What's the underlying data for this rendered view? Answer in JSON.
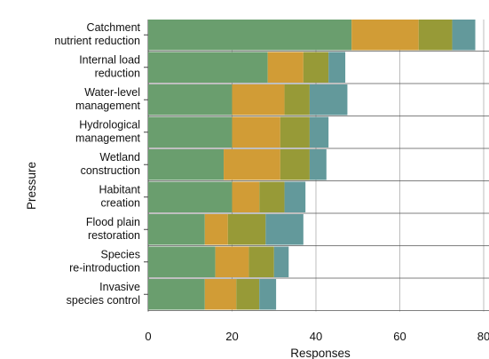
{
  "chart_data": {
    "type": "bar",
    "orientation": "horizontal",
    "stacked": true,
    "xlabel": "Responses",
    "ylabel": "Pressure",
    "xlim": [
      0,
      80
    ],
    "xticks": [
      0,
      20,
      40,
      60,
      80
    ],
    "grid": "vertical",
    "legend": "none",
    "categories": [
      [
        "Catchment",
        "nutrient reduction"
      ],
      [
        "Internal load",
        "reduction"
      ],
      [
        "Water-level",
        "management"
      ],
      [
        "Hydrological",
        "management"
      ],
      [
        "Wetland",
        "construction"
      ],
      [
        "Habitant",
        "creation"
      ],
      [
        "Flood plain",
        "restoration"
      ],
      [
        "Species",
        "re-introduction"
      ],
      [
        "Invasive",
        "species control"
      ]
    ],
    "series": [
      {
        "color": "#6a9e6e",
        "values": [
          48.5,
          28.5,
          20,
          20,
          18,
          20,
          13.5,
          16,
          13.5
        ]
      },
      {
        "color": "#d19c36",
        "values": [
          16,
          8.5,
          12.5,
          11.5,
          13.5,
          6.5,
          5.5,
          8,
          7.5
        ]
      },
      {
        "color": "#979a37",
        "values": [
          8,
          6,
          6,
          7,
          7,
          6,
          9,
          6,
          5.5
        ]
      },
      {
        "color": "#63999b",
        "values": [
          5.5,
          4,
          9,
          4.5,
          4,
          5,
          9,
          3.5,
          4
        ]
      }
    ]
  }
}
